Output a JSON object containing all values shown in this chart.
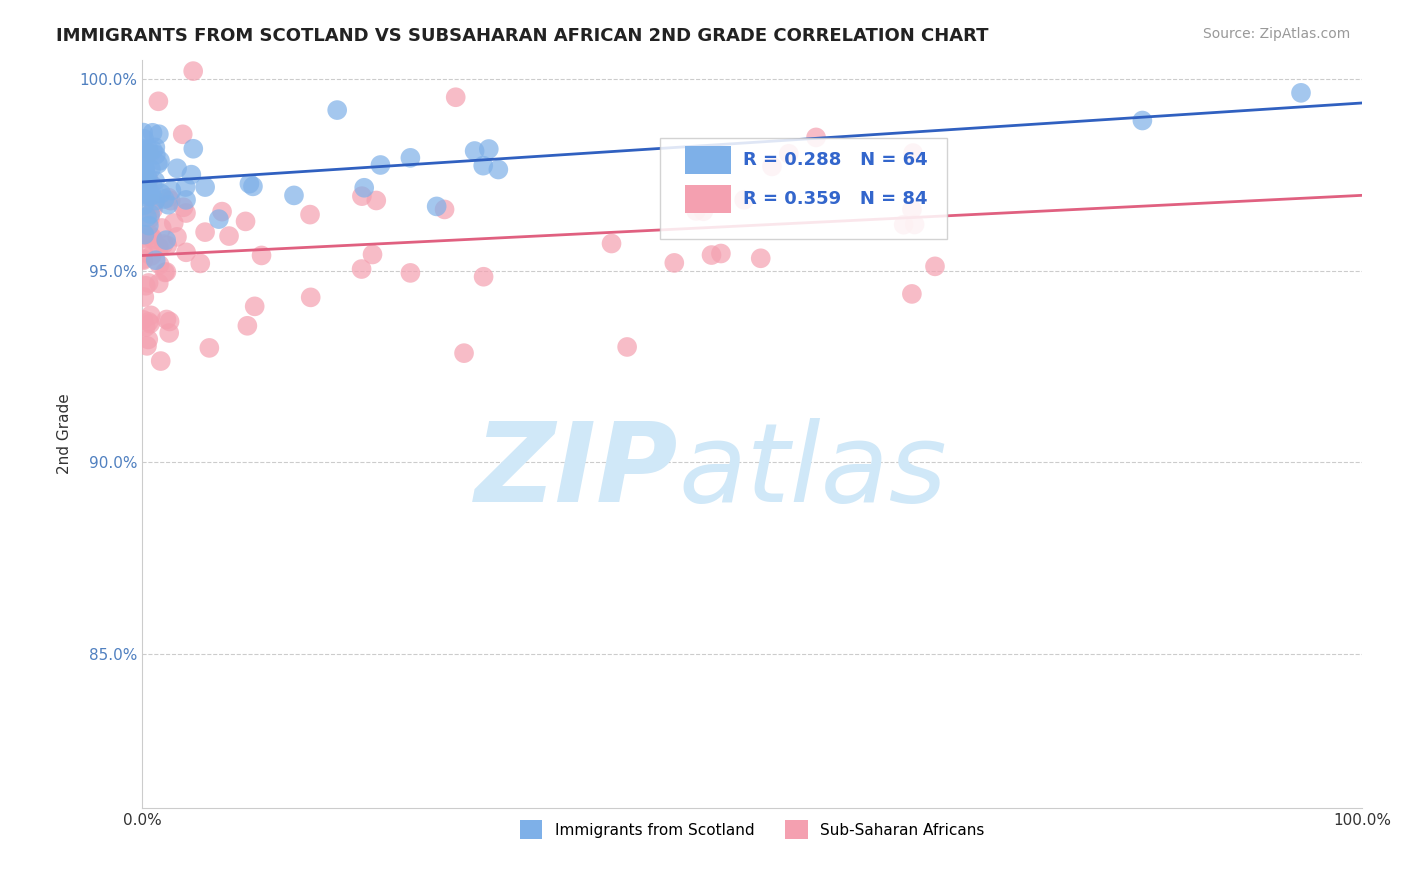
{
  "title": "IMMIGRANTS FROM SCOTLAND VS SUBSAHARAN AFRICAN 2ND GRADE CORRELATION CHART",
  "source_text": "Source: ZipAtlas.com",
  "ylabel": "2nd Grade",
  "xlim": [
    0.0,
    1.0
  ],
  "ylim": [
    0.81,
    1.005
  ],
  "yticks": [
    0.85,
    0.9,
    0.95,
    1.0
  ],
  "ytick_labels": [
    "85.0%",
    "90.0%",
    "95.0%",
    "100.0%"
  ],
  "legend_labels": [
    "Immigrants from Scotland",
    "Sub-Saharan Africans"
  ],
  "scotland_R": 0.288,
  "scotland_N": 64,
  "subsaharan_R": 0.359,
  "subsaharan_N": 84,
  "scotland_color": "#7EB0E8",
  "subsaharan_color": "#F4A0B0",
  "scotland_line_color": "#3060C0",
  "subsaharan_line_color": "#E06080",
  "watermark_zip": "ZIP",
  "watermark_atlas": "atlas",
  "watermark_color": "#D0E8F8",
  "background_color": "#FFFFFF"
}
